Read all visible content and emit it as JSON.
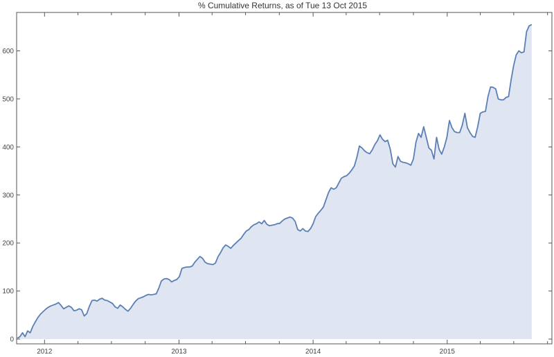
{
  "chart_data": {
    "type": "area",
    "title": "% Cumulative Returns, as of Tue 13 Oct 2015",
    "xlabel": "",
    "ylabel": "",
    "xlim": [
      "2011-10-17",
      "2015-10-13"
    ],
    "ylim": [
      -10,
      680
    ],
    "grid": false,
    "legend": "none",
    "colors": {
      "line": "#5a7fb5",
      "fill": "#dfe5f1",
      "frame": "#555555",
      "text": "#333333"
    },
    "x_ticks": [
      {
        "label": "2012",
        "date": "2012-01-01"
      },
      {
        "label": "2013",
        "date": "2013-01-01"
      },
      {
        "label": "2014",
        "date": "2014-01-01"
      },
      {
        "label": "2015",
        "date": "2015-01-01"
      }
    ],
    "y_ticks": [
      0,
      100,
      200,
      300,
      400,
      500,
      600
    ],
    "series": [
      {
        "points": [
          [
            "2011-10-19",
            2
          ],
          [
            "2011-10-26",
            5
          ],
          [
            "2011-11-02",
            13
          ],
          [
            "2011-11-09",
            5
          ],
          [
            "2011-11-16",
            17
          ],
          [
            "2011-11-23",
            13
          ],
          [
            "2011-11-30",
            26
          ],
          [
            "2011-12-07",
            36
          ],
          [
            "2011-12-14",
            45
          ],
          [
            "2011-12-21",
            52
          ],
          [
            "2011-12-28",
            57
          ],
          [
            "2012-01-04",
            62
          ],
          [
            "2012-01-11",
            66
          ],
          [
            "2012-01-18",
            69
          ],
          [
            "2012-01-25",
            71
          ],
          [
            "2012-02-01",
            73
          ],
          [
            "2012-02-08",
            76
          ],
          [
            "2012-02-15",
            70
          ],
          [
            "2012-02-22",
            63
          ],
          [
            "2012-02-29",
            66
          ],
          [
            "2012-03-07",
            69
          ],
          [
            "2012-03-14",
            66
          ],
          [
            "2012-03-21",
            59
          ],
          [
            "2012-03-28",
            60
          ],
          [
            "2012-04-04",
            63
          ],
          [
            "2012-04-11",
            61
          ],
          [
            "2012-04-18",
            48
          ],
          [
            "2012-04-25",
            53
          ],
          [
            "2012-05-02",
            68
          ],
          [
            "2012-05-09",
            80
          ],
          [
            "2012-05-16",
            81
          ],
          [
            "2012-05-23",
            79
          ],
          [
            "2012-05-30",
            83
          ],
          [
            "2012-06-06",
            85
          ],
          [
            "2012-06-13",
            81
          ],
          [
            "2012-06-20",
            80
          ],
          [
            "2012-06-27",
            77
          ],
          [
            "2012-07-04",
            74
          ],
          [
            "2012-07-11",
            67
          ],
          [
            "2012-07-18",
            64
          ],
          [
            "2012-07-25",
            71
          ],
          [
            "2012-08-01",
            67
          ],
          [
            "2012-08-08",
            62
          ],
          [
            "2012-08-15",
            58
          ],
          [
            "2012-08-22",
            64
          ],
          [
            "2012-08-29",
            72
          ],
          [
            "2012-09-05",
            79
          ],
          [
            "2012-09-12",
            84
          ],
          [
            "2012-09-19",
            86
          ],
          [
            "2012-09-26",
            88
          ],
          [
            "2012-10-03",
            91
          ],
          [
            "2012-10-10",
            93
          ],
          [
            "2012-10-17",
            92
          ],
          [
            "2012-10-24",
            93
          ],
          [
            "2012-10-31",
            94
          ],
          [
            "2012-11-07",
            106
          ],
          [
            "2012-11-14",
            121
          ],
          [
            "2012-11-21",
            125
          ],
          [
            "2012-11-28",
            126
          ],
          [
            "2012-12-05",
            124
          ],
          [
            "2012-12-12",
            119
          ],
          [
            "2012-12-19",
            122
          ],
          [
            "2012-12-26",
            124
          ],
          [
            "2013-01-02",
            130
          ],
          [
            "2013-01-09",
            147
          ],
          [
            "2013-01-16",
            149
          ],
          [
            "2013-01-23",
            150
          ],
          [
            "2013-01-30",
            150
          ],
          [
            "2013-02-06",
            152
          ],
          [
            "2013-02-13",
            160
          ],
          [
            "2013-02-20",
            166
          ],
          [
            "2013-02-27",
            172
          ],
          [
            "2013-03-06",
            168
          ],
          [
            "2013-03-13",
            160
          ],
          [
            "2013-03-20",
            157
          ],
          [
            "2013-03-27",
            156
          ],
          [
            "2013-04-03",
            155
          ],
          [
            "2013-04-10",
            158
          ],
          [
            "2013-04-17",
            171
          ],
          [
            "2013-04-24",
            180
          ],
          [
            "2013-05-01",
            190
          ],
          [
            "2013-05-08",
            196
          ],
          [
            "2013-05-15",
            193
          ],
          [
            "2013-05-22",
            189
          ],
          [
            "2013-05-29",
            195
          ],
          [
            "2013-06-05",
            200
          ],
          [
            "2013-06-12",
            205
          ],
          [
            "2013-06-19",
            210
          ],
          [
            "2013-06-26",
            218
          ],
          [
            "2013-07-03",
            225
          ],
          [
            "2013-07-10",
            228
          ],
          [
            "2013-07-17",
            234
          ],
          [
            "2013-07-24",
            238
          ],
          [
            "2013-07-31",
            240
          ],
          [
            "2013-08-07",
            244
          ],
          [
            "2013-08-14",
            240
          ],
          [
            "2013-08-21",
            247
          ],
          [
            "2013-08-28",
            239
          ],
          [
            "2013-09-04",
            236
          ],
          [
            "2013-09-11",
            237
          ],
          [
            "2013-09-18",
            238
          ],
          [
            "2013-09-25",
            240
          ],
          [
            "2013-10-02",
            241
          ],
          [
            "2013-10-09",
            246
          ],
          [
            "2013-10-16",
            250
          ],
          [
            "2013-10-23",
            252
          ],
          [
            "2013-10-30",
            254
          ],
          [
            "2013-11-06",
            252
          ],
          [
            "2013-11-13",
            245
          ],
          [
            "2013-11-20",
            228
          ],
          [
            "2013-11-27",
            225
          ],
          [
            "2013-12-04",
            230
          ],
          [
            "2013-12-11",
            225
          ],
          [
            "2013-12-18",
            224
          ],
          [
            "2013-12-25",
            230
          ],
          [
            "2014-01-01",
            240
          ],
          [
            "2014-01-08",
            255
          ],
          [
            "2014-01-15",
            262
          ],
          [
            "2014-01-22",
            268
          ],
          [
            "2014-01-29",
            275
          ],
          [
            "2014-02-05",
            290
          ],
          [
            "2014-02-12",
            305
          ],
          [
            "2014-02-19",
            315
          ],
          [
            "2014-02-26",
            312
          ],
          [
            "2014-03-05",
            315
          ],
          [
            "2014-03-12",
            325
          ],
          [
            "2014-03-19",
            335
          ],
          [
            "2014-03-26",
            338
          ],
          [
            "2014-04-02",
            340
          ],
          [
            "2014-04-09",
            345
          ],
          [
            "2014-04-16",
            352
          ],
          [
            "2014-04-23",
            360
          ],
          [
            "2014-04-30",
            378
          ],
          [
            "2014-05-07",
            402
          ],
          [
            "2014-05-14",
            398
          ],
          [
            "2014-05-21",
            392
          ],
          [
            "2014-05-28",
            388
          ],
          [
            "2014-06-04",
            386
          ],
          [
            "2014-06-11",
            394
          ],
          [
            "2014-06-18",
            405
          ],
          [
            "2014-06-25",
            413
          ],
          [
            "2014-07-02",
            425
          ],
          [
            "2014-07-09",
            416
          ],
          [
            "2014-07-16",
            411
          ],
          [
            "2014-07-23",
            414
          ],
          [
            "2014-07-30",
            395
          ],
          [
            "2014-08-06",
            365
          ],
          [
            "2014-08-13",
            358
          ],
          [
            "2014-08-20",
            380
          ],
          [
            "2014-08-27",
            370
          ],
          [
            "2014-09-03",
            368
          ],
          [
            "2014-09-10",
            367
          ],
          [
            "2014-09-17",
            365
          ],
          [
            "2014-09-24",
            362
          ],
          [
            "2014-10-01",
            375
          ],
          [
            "2014-10-08",
            410
          ],
          [
            "2014-10-15",
            428
          ],
          [
            "2014-10-22",
            420
          ],
          [
            "2014-10-29",
            442
          ],
          [
            "2014-11-05",
            420
          ],
          [
            "2014-11-12",
            398
          ],
          [
            "2014-11-19",
            393
          ],
          [
            "2014-11-26",
            375
          ],
          [
            "2014-12-03",
            420
          ],
          [
            "2014-12-10",
            395
          ],
          [
            "2014-12-17",
            385
          ],
          [
            "2014-12-24",
            400
          ],
          [
            "2014-12-31",
            420
          ],
          [
            "2015-01-07",
            455
          ],
          [
            "2015-01-14",
            440
          ],
          [
            "2015-01-21",
            432
          ],
          [
            "2015-01-28",
            430
          ],
          [
            "2015-02-04",
            430
          ],
          [
            "2015-02-11",
            445
          ],
          [
            "2015-02-18",
            470
          ],
          [
            "2015-02-25",
            440
          ],
          [
            "2015-03-04",
            430
          ],
          [
            "2015-03-11",
            422
          ],
          [
            "2015-03-18",
            420
          ],
          [
            "2015-03-25",
            442
          ],
          [
            "2015-04-01",
            470
          ],
          [
            "2015-04-08",
            473
          ],
          [
            "2015-04-15",
            474
          ],
          [
            "2015-04-22",
            505
          ],
          [
            "2015-04-29",
            525
          ],
          [
            "2015-05-06",
            524
          ],
          [
            "2015-05-13",
            521
          ],
          [
            "2015-05-20",
            500
          ],
          [
            "2015-05-27",
            498
          ],
          [
            "2015-06-03",
            498
          ],
          [
            "2015-06-10",
            503
          ],
          [
            "2015-06-17",
            505
          ],
          [
            "2015-06-24",
            540
          ],
          [
            "2015-07-01",
            570
          ],
          [
            "2015-07-08",
            592
          ],
          [
            "2015-07-15",
            600
          ],
          [
            "2015-07-22",
            596
          ],
          [
            "2015-07-29",
            598
          ],
          [
            "2015-08-05",
            640
          ],
          [
            "2015-08-12",
            652
          ],
          [
            "2015-08-19",
            655
          ]
        ]
      }
    ]
  }
}
